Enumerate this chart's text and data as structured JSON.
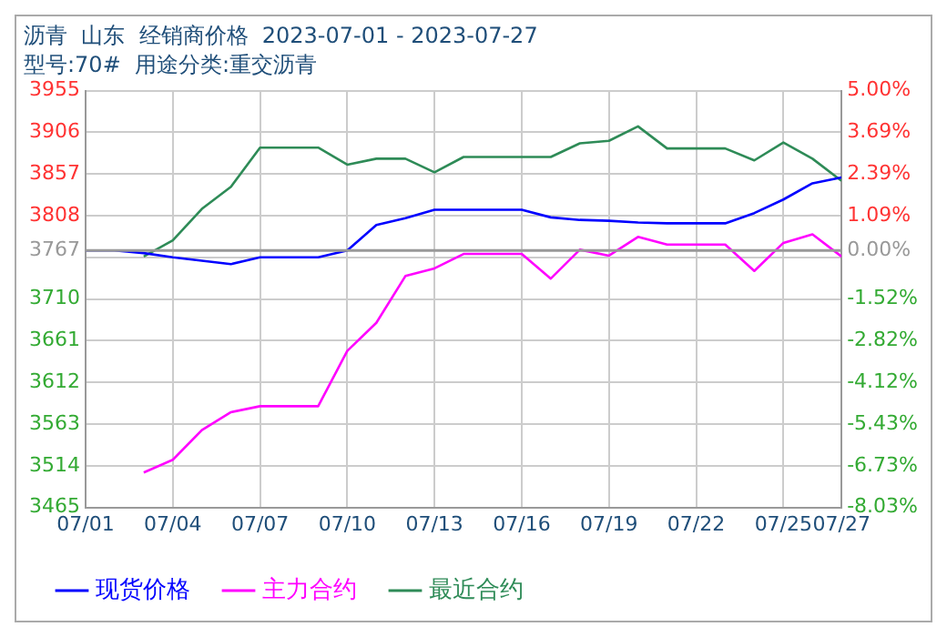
{
  "chart_data": {
    "type": "line",
    "title": "沥青  山东  经销商价格  2023-07-01 - 2023-07-27",
    "subtitle": "型号:70#  用途分类:重交沥青",
    "x": [
      "2023-07-01",
      "2023-07-02",
      "2023-07-03",
      "2023-07-04",
      "2023-07-05",
      "2023-07-06",
      "2023-07-07",
      "2023-07-08",
      "2023-07-09",
      "2023-07-10",
      "2023-07-11",
      "2023-07-12",
      "2023-07-13",
      "2023-07-14",
      "2023-07-15",
      "2023-07-16",
      "2023-07-17",
      "2023-07-18",
      "2023-07-19",
      "2023-07-20",
      "2023-07-21",
      "2023-07-22",
      "2023-07-23",
      "2023-07-24",
      "2023-07-25",
      "2023-07-26",
      "2023-07-27"
    ],
    "series": [
      {
        "name": "现货价格",
        "color": "#0000ff",
        "values": [
          3767,
          3767,
          3764,
          3759,
          3755,
          3751,
          3759,
          3759,
          3759,
          3767,
          3797,
          3805,
          3815,
          3815,
          3815,
          3815,
          3806,
          3803,
          3802,
          3800,
          3799,
          3799,
          3799,
          3811,
          3827,
          3846,
          3853
        ]
      },
      {
        "name": "主力合约",
        "color": "#ff00ff",
        "values": [
          null,
          null,
          3506,
          3521,
          3556,
          3577,
          3584,
          3584,
          3584,
          3649,
          3682,
          3737,
          3746,
          3763,
          3763,
          3763,
          3734,
          3768,
          3761,
          3783,
          3774,
          3774,
          3774,
          3743,
          3776,
          3786,
          3760
        ]
      },
      {
        "name": "最近合约",
        "color": "#2e8b57",
        "values": [
          null,
          null,
          3760,
          3779,
          3816,
          3842,
          3888,
          3888,
          3888,
          3868,
          3875,
          3875,
          3859,
          3877,
          3877,
          3877,
          3877,
          3893,
          3896,
          3913,
          3887,
          3887,
          3887,
          3873,
          3894,
          3875,
          3849
        ]
      }
    ],
    "xlim": [
      "2023-07-01",
      "2023-07-27"
    ],
    "xticks": [
      {
        "value": "2023-07-01",
        "label": "07/01"
      },
      {
        "value": "2023-07-04",
        "label": "07/04"
      },
      {
        "value": "2023-07-07",
        "label": "07/07"
      },
      {
        "value": "2023-07-10",
        "label": "07/10"
      },
      {
        "value": "2023-07-13",
        "label": "07/13"
      },
      {
        "value": "2023-07-16",
        "label": "07/16"
      },
      {
        "value": "2023-07-19",
        "label": "07/19"
      },
      {
        "value": "2023-07-22",
        "label": "07/22"
      },
      {
        "value": "2023-07-25",
        "label": "07/25"
      },
      {
        "value": "2023-07-27",
        "label": "07/27"
      }
    ],
    "ylim": [
      3465,
      3955
    ],
    "yticks": [
      3465,
      3514,
      3563,
      3612,
      3661,
      3710,
      {
        "value": 3759,
        "label": null
      },
      3767,
      3808,
      3857,
      3906,
      3955
    ],
    "y2lim": [
      -8.03,
      5.0
    ],
    "y2ticks": [
      {
        "value": -8.03,
        "label": "-8.03%"
      },
      {
        "value": -6.73,
        "label": "-6.73%"
      },
      {
        "value": -5.43,
        "label": "-5.43%"
      },
      {
        "value": -4.12,
        "label": "-4.12%"
      },
      {
        "value": -2.82,
        "label": "-2.82%"
      },
      {
        "value": -1.52,
        "label": "-1.52%"
      },
      {
        "value": 0,
        "label": "0.00%"
      },
      {
        "value": 1.09,
        "label": "1.09%"
      },
      {
        "value": 2.39,
        "label": "2.39%"
      },
      {
        "value": 3.69,
        "label": "3.69%"
      },
      {
        "value": 5.0,
        "label": "5.00%"
      }
    ],
    "ref_lines": [
      {
        "axis": "y",
        "value": 3767,
        "color": "#999999"
      }
    ],
    "grid": true,
    "legend": "bottom",
    "marker": "none",
    "line_style": "solid"
  }
}
